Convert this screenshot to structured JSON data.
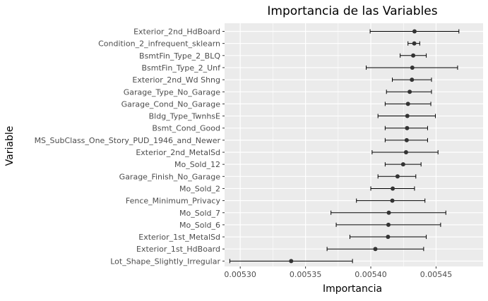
{
  "chart_data": {
    "type": "scatter",
    "title": "Importancia de las Variables",
    "xlabel": "Importancia",
    "ylabel": "Variable",
    "xlim": [
      0.005288,
      0.005486
    ],
    "xticks": [
      0.0053,
      0.00535,
      0.0054,
      0.00545
    ],
    "xtick_labels": [
      "0.00530",
      "0.00535",
      "0.00540",
      "0.00545"
    ],
    "grid": true,
    "colors": {
      "panel": "#ebebeb",
      "grid": "#ffffff",
      "point": "#333333",
      "errorbar": "#000000"
    },
    "points": [
      {
        "label": "Exterior_2nd_HdBoard",
        "value": 0.0054335,
        "low": 0.0053995,
        "high": 0.0054675
      },
      {
        "label": "Condition_2_infrequent_sklearn",
        "value": 0.0054333,
        "low": 0.0054285,
        "high": 0.0054375
      },
      {
        "label": "BsmtFin_Type_2_BLQ",
        "value": 0.0054325,
        "low": 0.0054225,
        "high": 0.0054425
      },
      {
        "label": "BsmtFin_Type_2_Unf",
        "value": 0.0054318,
        "low": 0.0053965,
        "high": 0.0054665
      },
      {
        "label": "Exterior_2nd_Wd Shng",
        "value": 0.0054315,
        "low": 0.0054165,
        "high": 0.0054465
      },
      {
        "label": "Garage_Type_No_Garage",
        "value": 0.0054298,
        "low": 0.005412,
        "high": 0.0054465
      },
      {
        "label": "Garage_Cond_No_Garage",
        "value": 0.0054285,
        "low": 0.005411,
        "high": 0.005446
      },
      {
        "label": "Bldg_Type_TwnhsE",
        "value": 0.005428,
        "low": 0.0054055,
        "high": 0.0054495
      },
      {
        "label": "Bsmt_Cond_Good",
        "value": 0.0054278,
        "low": 0.005411,
        "high": 0.0054435
      },
      {
        "label": "MS_SubClass_One_Story_PUD_1946_and_Newer",
        "value": 0.0054275,
        "low": 0.005411,
        "high": 0.0054435
      },
      {
        "label": "Exterior_2nd_MetalSd",
        "value": 0.005427,
        "low": 0.005401,
        "high": 0.0054515
      },
      {
        "label": "Mo_Sold_12",
        "value": 0.0054248,
        "low": 0.005411,
        "high": 0.0054385
      },
      {
        "label": "Garage_Finish_No_Garage",
        "value": 0.0054205,
        "low": 0.0054055,
        "high": 0.0054345
      },
      {
        "label": "Mo_Sold_2",
        "value": 0.0054168,
        "low": 0.0054,
        "high": 0.0054335
      },
      {
        "label": "Fence_Minimum_Privacy",
        "value": 0.0054165,
        "low": 0.005389,
        "high": 0.0054415
      },
      {
        "label": "Mo_Sold_7",
        "value": 0.0054138,
        "low": 0.0053695,
        "high": 0.0054575
      },
      {
        "label": "Mo_Sold_6",
        "value": 0.0054135,
        "low": 0.0053735,
        "high": 0.0054535
      },
      {
        "label": "Exterior_1st_MetalSd",
        "value": 0.0054132,
        "low": 0.005384,
        "high": 0.0054425
      },
      {
        "label": "Exterior_1st_HdBoard",
        "value": 0.0054035,
        "low": 0.0053665,
        "high": 0.0054405
      },
      {
        "label": "Lot_Shape_Slightly_Irregular",
        "value": 0.005339,
        "low": 0.005292,
        "high": 0.005386
      }
    ]
  }
}
